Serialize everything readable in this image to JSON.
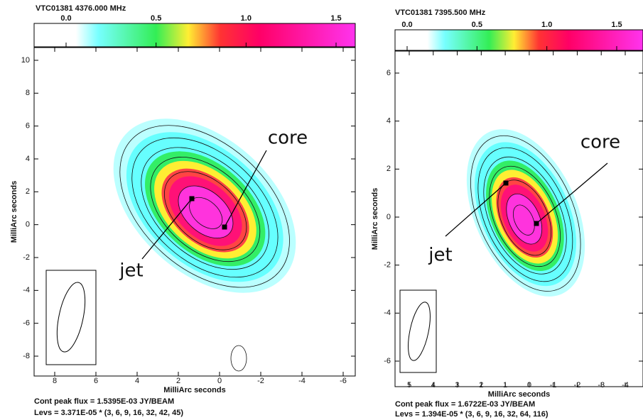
{
  "panels": [
    {
      "header": "VTC01381   4376.000 MHz",
      "colorbar_ticks": [
        "0.0",
        "0.5",
        "1.0",
        "1.5"
      ],
      "y_ticks": [
        "10",
        "8",
        "6",
        "4",
        "2",
        "0",
        "-2",
        "-4",
        "-6",
        "-8"
      ],
      "x_ticks": [
        "8",
        "6",
        "4",
        "2",
        "0",
        "-2",
        "-4",
        "-6"
      ],
      "y_label": "MilliArc seconds",
      "x_label": "MilliArc seconds",
      "annotations": [
        "core",
        "jet"
      ],
      "footer": [
        "Cont peak flux =  1.5395E-03 JY/BEAM",
        "Levs = 3.371E-05 * (3, 6, 9, 16, 32, 42, 45)"
      ]
    },
    {
      "header": "VTC01381   7395.500 MHz",
      "colorbar_ticks": [
        "0.0",
        "0.5",
        "1.0",
        "1.5"
      ],
      "y_ticks": [
        "6",
        "4",
        "2",
        "0",
        "-2",
        "-4",
        "-6"
      ],
      "x_ticks": [
        "5",
        "4",
        "3",
        "2",
        "1",
        "0",
        "-1",
        "-2",
        "-3",
        "-4"
      ],
      "y_label": "MilliArc seconds",
      "x_label": "MilliArc seconds",
      "annotations": [
        "core",
        "jet"
      ],
      "footer": [
        "Cont peak flux =  1.6722E-03 JY/BEAM",
        "Levs = 1.394E-05 * (3, 6, 9, 16, 32, 64, 116)"
      ]
    }
  ]
}
